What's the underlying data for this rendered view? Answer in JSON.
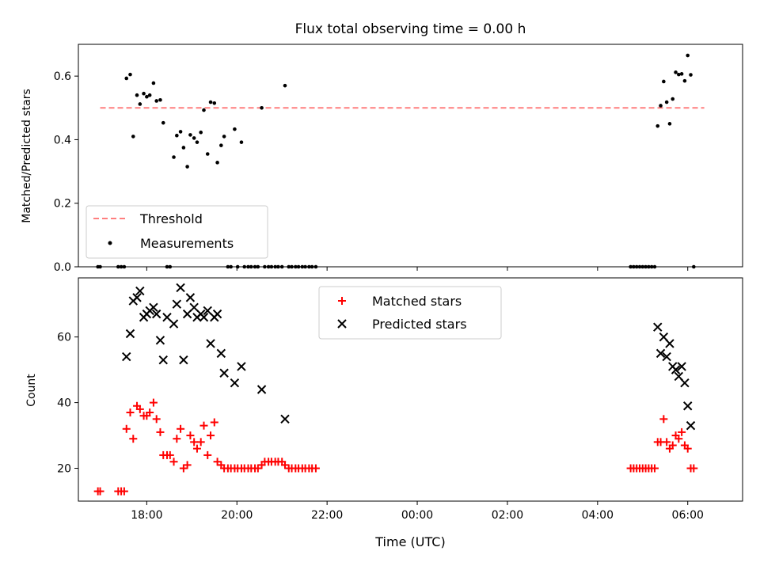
{
  "figure": {
    "title": "Flux total observing time = 0.00 h",
    "xlabel": "Time (UTC)"
  },
  "chart_data": [
    {
      "type": "scatter",
      "ylabel": "Matched/Predicted stars",
      "xlim": [
        "2023-01-01T16:29",
        "2023-01-02T07:13"
      ],
      "ylim": [
        0,
        0.7
      ],
      "yticks": [
        0.0,
        0.2,
        0.4,
        0.6
      ],
      "ytick_labels": [
        "0.0",
        "0.2",
        "0.4",
        "0.6"
      ],
      "grid": false,
      "legend": {
        "placement": "lower-left",
        "entries": [
          "Threshold",
          "Measurements"
        ]
      },
      "threshold": {
        "name": "Threshold",
        "value": 0.5,
        "x_start": "2023-01-01T16:58",
        "x_end": "2023-01-02T06:22",
        "color": "#ff7f7f",
        "style": "dashed"
      },
      "series": [
        {
          "name": "Measurements",
          "color": "#000000",
          "marker": "dot",
          "points": [
            [
              "2023-01-01T16:55",
              0.0
            ],
            [
              "2023-01-01T16:58",
              0.0
            ],
            [
              "2023-01-01T17:22",
              0.0
            ],
            [
              "2023-01-01T17:26",
              0.0
            ],
            [
              "2023-01-01T17:30",
              0.0
            ],
            [
              "2023-01-01T17:33",
              0.593
            ],
            [
              "2023-01-01T17:38",
              0.605
            ],
            [
              "2023-01-01T17:42",
              0.41
            ],
            [
              "2023-01-01T17:47",
              0.54
            ],
            [
              "2023-01-01T17:51",
              0.512
            ],
            [
              "2023-01-01T17:56",
              0.545
            ],
            [
              "2023-01-01T18:00",
              0.535
            ],
            [
              "2023-01-01T18:04",
              0.54
            ],
            [
              "2023-01-01T18:09",
              0.578
            ],
            [
              "2023-01-01T18:13",
              0.522
            ],
            [
              "2023-01-01T18:18",
              0.525
            ],
            [
              "2023-01-01T18:22",
              0.453
            ],
            [
              "2023-01-01T18:27",
              0.0
            ],
            [
              "2023-01-01T18:31",
              0.0
            ],
            [
              "2023-01-01T18:36",
              0.345
            ],
            [
              "2023-01-01T18:40",
              0.413
            ],
            [
              "2023-01-01T18:45",
              0.425
            ],
            [
              "2023-01-01T18:49",
              0.375
            ],
            [
              "2023-01-01T18:54",
              0.315
            ],
            [
              "2023-01-01T18:58",
              0.415
            ],
            [
              "2023-01-01T19:03",
              0.405
            ],
            [
              "2023-01-01T19:07",
              0.392
            ],
            [
              "2023-01-01T19:12",
              0.423
            ],
            [
              "2023-01-01T19:16",
              0.493
            ],
            [
              "2023-01-01T19:21",
              0.355
            ],
            [
              "2023-01-01T19:25",
              0.518
            ],
            [
              "2023-01-01T19:30",
              0.515
            ],
            [
              "2023-01-01T19:34",
              0.328
            ],
            [
              "2023-01-01T19:39",
              0.382
            ],
            [
              "2023-01-01T19:43",
              0.41
            ],
            [
              "2023-01-01T19:48",
              0.0
            ],
            [
              "2023-01-01T19:52",
              0.0
            ],
            [
              "2023-01-01T19:57",
              0.433
            ],
            [
              "2023-01-01T20:01",
              0.0
            ],
            [
              "2023-01-01T20:06",
              0.392
            ],
            [
              "2023-01-01T20:10",
              0.0
            ],
            [
              "2023-01-01T20:15",
              0.0
            ],
            [
              "2023-01-01T20:19",
              0.0
            ],
            [
              "2023-01-01T20:24",
              0.0
            ],
            [
              "2023-01-01T20:28",
              0.0
            ],
            [
              "2023-01-01T20:33",
              0.5
            ],
            [
              "2023-01-01T20:37",
              0.0
            ],
            [
              "2023-01-01T20:42",
              0.0
            ],
            [
              "2023-01-01T20:46",
              0.0
            ],
            [
              "2023-01-01T20:51",
              0.0
            ],
            [
              "2023-01-01T20:55",
              0.0
            ],
            [
              "2023-01-01T21:00",
              0.0
            ],
            [
              "2023-01-01T21:04",
              0.57
            ],
            [
              "2023-01-01T21:09",
              0.0
            ],
            [
              "2023-01-01T21:13",
              0.0
            ],
            [
              "2023-01-01T21:18",
              0.0
            ],
            [
              "2023-01-01T21:22",
              0.0
            ],
            [
              "2023-01-01T21:27",
              0.0
            ],
            [
              "2023-01-01T21:31",
              0.0
            ],
            [
              "2023-01-01T21:36",
              0.0
            ],
            [
              "2023-01-01T21:40",
              0.0
            ],
            [
              "2023-01-01T21:45",
              0.0
            ],
            [
              "2023-01-02T04:44",
              0.0
            ],
            [
              "2023-01-02T04:48",
              0.0
            ],
            [
              "2023-01-02T04:52",
              0.0
            ],
            [
              "2023-01-02T04:56",
              0.0
            ],
            [
              "2023-01-02T05:00",
              0.0
            ],
            [
              "2023-01-02T05:04",
              0.0
            ],
            [
              "2023-01-02T05:08",
              0.0
            ],
            [
              "2023-01-02T05:12",
              0.0
            ],
            [
              "2023-01-02T05:16",
              0.0
            ],
            [
              "2023-01-02T05:20",
              0.443
            ],
            [
              "2023-01-02T05:24",
              0.507
            ],
            [
              "2023-01-02T05:28",
              0.583
            ],
            [
              "2023-01-02T05:32",
              0.518
            ],
            [
              "2023-01-02T05:36",
              0.45
            ],
            [
              "2023-01-02T05:40",
              0.528
            ],
            [
              "2023-01-02T05:44",
              0.612
            ],
            [
              "2023-01-02T05:48",
              0.605
            ],
            [
              "2023-01-02T05:52",
              0.607
            ],
            [
              "2023-01-02T05:56",
              0.585
            ],
            [
              "2023-01-02T06:00",
              0.665
            ],
            [
              "2023-01-02T06:04",
              0.604
            ],
            [
              "2023-01-02T06:08",
              0.0
            ]
          ]
        }
      ]
    },
    {
      "type": "scatter",
      "ylabel": "Count",
      "xlim": [
        "2023-01-01T16:29",
        "2023-01-02T07:13"
      ],
      "ylim": [
        10,
        78
      ],
      "yticks": [
        20,
        40,
        60
      ],
      "ytick_labels": [
        "20",
        "40",
        "60"
      ],
      "xticks": [
        "2023-01-01T18:00",
        "2023-01-01T20:00",
        "2023-01-01T22:00",
        "2023-01-02T00:00",
        "2023-01-02T02:00",
        "2023-01-02T04:00",
        "2023-01-02T06:00"
      ],
      "xtick_labels": [
        "18:00",
        "20:00",
        "22:00",
        "00:00",
        "02:00",
        "04:00",
        "06:00"
      ],
      "grid": false,
      "legend": {
        "placement": "top-center",
        "entries": [
          "Matched stars",
          "Predicted stars"
        ]
      },
      "series": [
        {
          "name": "Matched stars",
          "color": "#ff0000",
          "marker": "plus",
          "points": [
            [
              "2023-01-01T16:55",
              13
            ],
            [
              "2023-01-01T16:58",
              13
            ],
            [
              "2023-01-01T17:22",
              13
            ],
            [
              "2023-01-01T17:26",
              13
            ],
            [
              "2023-01-01T17:30",
              13
            ],
            [
              "2023-01-01T17:33",
              32
            ],
            [
              "2023-01-01T17:38",
              37
            ],
            [
              "2023-01-01T17:42",
              29
            ],
            [
              "2023-01-01T17:47",
              39
            ],
            [
              "2023-01-01T17:51",
              38
            ],
            [
              "2023-01-01T17:56",
              36
            ],
            [
              "2023-01-01T18:00",
              36
            ],
            [
              "2023-01-01T18:04",
              37
            ],
            [
              "2023-01-01T18:09",
              40
            ],
            [
              "2023-01-01T18:13",
              35
            ],
            [
              "2023-01-01T18:18",
              31
            ],
            [
              "2023-01-01T18:22",
              24
            ],
            [
              "2023-01-01T18:27",
              24
            ],
            [
              "2023-01-01T18:31",
              24
            ],
            [
              "2023-01-01T18:36",
              22
            ],
            [
              "2023-01-01T18:40",
              29
            ],
            [
              "2023-01-01T18:45",
              32
            ],
            [
              "2023-01-01T18:49",
              20
            ],
            [
              "2023-01-01T18:54",
              21
            ],
            [
              "2023-01-01T18:58",
              30
            ],
            [
              "2023-01-01T19:03",
              28
            ],
            [
              "2023-01-01T19:07",
              26
            ],
            [
              "2023-01-01T19:12",
              28
            ],
            [
              "2023-01-01T19:16",
              33
            ],
            [
              "2023-01-01T19:21",
              24
            ],
            [
              "2023-01-01T19:25",
              30
            ],
            [
              "2023-01-01T19:30",
              34
            ],
            [
              "2023-01-01T19:34",
              22
            ],
            [
              "2023-01-01T19:39",
              21
            ],
            [
              "2023-01-01T19:43",
              20
            ],
            [
              "2023-01-01T19:48",
              20
            ],
            [
              "2023-01-01T19:52",
              20
            ],
            [
              "2023-01-01T19:57",
              20
            ],
            [
              "2023-01-01T20:01",
              20
            ],
            [
              "2023-01-01T20:06",
              20
            ],
            [
              "2023-01-01T20:10",
              20
            ],
            [
              "2023-01-01T20:15",
              20
            ],
            [
              "2023-01-01T20:19",
              20
            ],
            [
              "2023-01-01T20:24",
              20
            ],
            [
              "2023-01-01T20:28",
              20
            ],
            [
              "2023-01-01T20:33",
              21
            ],
            [
              "2023-01-01T20:37",
              22
            ],
            [
              "2023-01-01T20:42",
              22
            ],
            [
              "2023-01-01T20:46",
              22
            ],
            [
              "2023-01-01T20:51",
              22
            ],
            [
              "2023-01-01T20:55",
              22
            ],
            [
              "2023-01-01T21:00",
              22
            ],
            [
              "2023-01-01T21:04",
              21
            ],
            [
              "2023-01-01T21:09",
              20
            ],
            [
              "2023-01-01T21:13",
              20
            ],
            [
              "2023-01-01T21:18",
              20
            ],
            [
              "2023-01-01T21:22",
              20
            ],
            [
              "2023-01-01T21:27",
              20
            ],
            [
              "2023-01-01T21:31",
              20
            ],
            [
              "2023-01-01T21:36",
              20
            ],
            [
              "2023-01-01T21:40",
              20
            ],
            [
              "2023-01-01T21:45",
              20
            ],
            [
              "2023-01-02T04:44",
              20
            ],
            [
              "2023-01-02T04:48",
              20
            ],
            [
              "2023-01-02T04:52",
              20
            ],
            [
              "2023-01-02T04:56",
              20
            ],
            [
              "2023-01-02T05:00",
              20
            ],
            [
              "2023-01-02T05:04",
              20
            ],
            [
              "2023-01-02T05:08",
              20
            ],
            [
              "2023-01-02T05:12",
              20
            ],
            [
              "2023-01-02T05:16",
              20
            ],
            [
              "2023-01-02T05:20",
              28
            ],
            [
              "2023-01-02T05:24",
              28
            ],
            [
              "2023-01-02T05:28",
              35
            ],
            [
              "2023-01-02T05:32",
              28
            ],
            [
              "2023-01-02T05:36",
              26
            ],
            [
              "2023-01-02T05:40",
              27
            ],
            [
              "2023-01-02T05:44",
              30
            ],
            [
              "2023-01-02T05:48",
              29
            ],
            [
              "2023-01-02T05:52",
              31
            ],
            [
              "2023-01-02T05:56",
              27
            ],
            [
              "2023-01-02T06:00",
              26
            ],
            [
              "2023-01-02T06:04",
              20
            ],
            [
              "2023-01-02T06:08",
              20
            ]
          ]
        },
        {
          "name": "Predicted stars",
          "color": "#000000",
          "marker": "x",
          "points": [
            [
              "2023-01-01T17:33",
              54
            ],
            [
              "2023-01-01T17:38",
              61
            ],
            [
              "2023-01-01T17:42",
              71
            ],
            [
              "2023-01-01T17:47",
              72
            ],
            [
              "2023-01-01T17:51",
              74
            ],
            [
              "2023-01-01T17:56",
              66
            ],
            [
              "2023-01-01T18:00",
              67
            ],
            [
              "2023-01-01T18:04",
              68
            ],
            [
              "2023-01-01T18:09",
              69
            ],
            [
              "2023-01-01T18:13",
              67
            ],
            [
              "2023-01-01T18:18",
              59
            ],
            [
              "2023-01-01T18:22",
              53
            ],
            [
              "2023-01-01T18:27",
              66
            ],
            [
              "2023-01-01T18:36",
              64
            ],
            [
              "2023-01-01T18:40",
              70
            ],
            [
              "2023-01-01T18:45",
              75
            ],
            [
              "2023-01-01T18:49",
              53
            ],
            [
              "2023-01-01T18:54",
              67
            ],
            [
              "2023-01-01T18:58",
              72
            ],
            [
              "2023-01-01T19:03",
              69
            ],
            [
              "2023-01-01T19:07",
              66
            ],
            [
              "2023-01-01T19:12",
              67
            ],
            [
              "2023-01-01T19:16",
              66
            ],
            [
              "2023-01-01T19:21",
              68
            ],
            [
              "2023-01-01T19:25",
              58
            ],
            [
              "2023-01-01T19:30",
              66
            ],
            [
              "2023-01-01T19:34",
              67
            ],
            [
              "2023-01-01T19:39",
              55
            ],
            [
              "2023-01-01T19:43",
              49
            ],
            [
              "2023-01-01T19:57",
              46
            ],
            [
              "2023-01-01T20:06",
              51
            ],
            [
              "2023-01-01T20:33",
              44
            ],
            [
              "2023-01-01T21:04",
              35
            ],
            [
              "2023-01-02T05:20",
              63
            ],
            [
              "2023-01-02T05:24",
              55
            ],
            [
              "2023-01-02T05:28",
              60
            ],
            [
              "2023-01-02T05:32",
              54
            ],
            [
              "2023-01-02T05:36",
              58
            ],
            [
              "2023-01-02T05:40",
              51
            ],
            [
              "2023-01-02T05:44",
              50
            ],
            [
              "2023-01-02T05:48",
              48
            ],
            [
              "2023-01-02T05:52",
              51
            ],
            [
              "2023-01-02T05:56",
              46
            ],
            [
              "2023-01-02T06:00",
              39
            ],
            [
              "2023-01-02T06:04",
              33
            ]
          ]
        }
      ]
    }
  ]
}
